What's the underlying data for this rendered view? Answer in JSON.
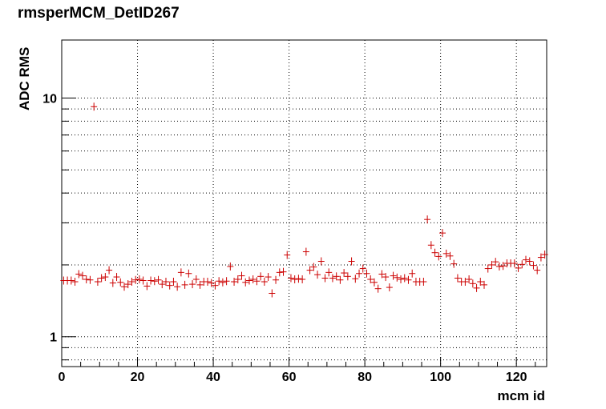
{
  "chart_data": {
    "type": "scatter",
    "title": "rmsperMCM_DetID267",
    "xlabel": "mcm id",
    "ylabel": "ADC RMS",
    "xlim": [
      0,
      128
    ],
    "ylim": [
      0.75,
      17.5
    ],
    "yscale": "log",
    "grid": true,
    "marker_color": "#cc0000",
    "x_ticks": [
      "0",
      "20",
      "40",
      "60",
      "80",
      "100",
      "120"
    ],
    "y_ticks": [
      "1",
      "10"
    ],
    "series": [
      {
        "x": [
          0,
          1,
          2,
          3,
          4,
          5,
          6,
          7,
          8,
          9,
          10,
          11,
          12,
          13,
          14,
          15,
          16,
          17,
          18,
          19,
          20,
          21,
          22,
          23,
          24,
          25,
          26,
          27,
          28,
          29,
          30,
          31,
          32,
          33,
          34,
          35,
          36,
          37,
          38,
          39,
          40,
          41,
          42,
          43,
          44,
          45,
          46,
          47,
          48,
          49,
          50,
          51,
          52,
          53,
          54,
          55,
          56,
          57,
          58,
          59,
          60,
          61,
          62,
          63,
          64,
          65,
          66,
          67,
          68,
          69,
          70,
          71,
          72,
          73,
          74,
          75,
          76,
          77,
          78,
          79,
          80,
          81,
          82,
          83,
          84,
          85,
          86,
          87,
          88,
          89,
          90,
          91,
          92,
          93,
          94,
          95,
          96,
          97,
          98,
          99,
          100,
          101,
          102,
          103,
          104,
          105,
          106,
          107,
          108,
          109,
          110,
          111,
          112,
          113,
          114,
          115,
          116,
          117,
          118,
          119,
          120,
          121,
          122,
          123,
          124,
          125,
          126,
          127
        ],
        "y": [
          1.72,
          1.72,
          1.72,
          1.7,
          1.83,
          1.8,
          1.74,
          1.73,
          9.2,
          1.7,
          1.76,
          1.78,
          1.9,
          1.68,
          1.78,
          1.69,
          1.62,
          1.66,
          1.7,
          1.73,
          1.74,
          1.72,
          1.63,
          1.72,
          1.71,
          1.73,
          1.66,
          1.7,
          1.64,
          1.7,
          1.62,
          1.86,
          1.65,
          1.84,
          1.66,
          1.74,
          1.65,
          1.7,
          1.7,
          1.68,
          1.64,
          1.71,
          1.69,
          1.71,
          1.97,
          1.7,
          1.74,
          1.8,
          1.69,
          1.72,
          1.74,
          1.71,
          1.79,
          1.7,
          1.78,
          1.52,
          1.73,
          1.86,
          1.87,
          2.2,
          1.76,
          1.74,
          1.75,
          1.74,
          2.27,
          1.9,
          1.96,
          1.82,
          2.07,
          1.76,
          1.86,
          1.76,
          1.79,
          1.73,
          1.85,
          1.79,
          2.07,
          1.75,
          1.84,
          1.93,
          1.84,
          1.74,
          1.69,
          1.59,
          1.83,
          1.78,
          1.61,
          1.8,
          1.77,
          1.74,
          1.76,
          1.73,
          1.84,
          1.7,
          1.7,
          1.7,
          3.1,
          2.42,
          2.25,
          2.17,
          2.72,
          2.23,
          2.18,
          2.02,
          1.76,
          1.7,
          1.7,
          1.74,
          1.67,
          1.6,
          1.7,
          1.65,
          1.93,
          2.0,
          2.06,
          1.97,
          1.98,
          2.03,
          2.03,
          2.03,
          1.94,
          2.01,
          2.1,
          2.07,
          1.99,
          1.9,
          2.15,
          2.21
        ]
      }
    ]
  }
}
